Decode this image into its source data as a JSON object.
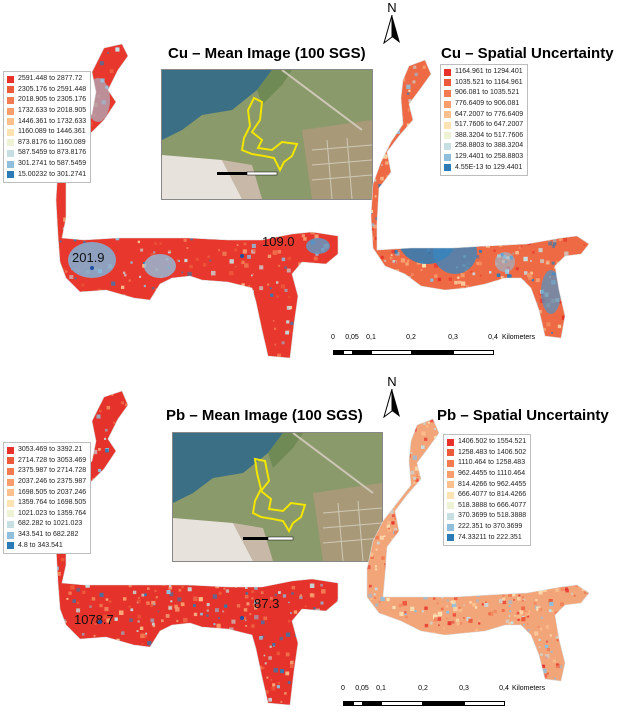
{
  "panels": {
    "cu_mean": {
      "title": "Cu – Mean Image (100 SGS)",
      "markers": [
        "201.9",
        "109.0"
      ],
      "legend": [
        {
          "label": "2591.448 to 2877.72",
          "color": "#e8312a"
        },
        {
          "label": "2305.176 to 2591.448",
          "color": "#ed5a3b"
        },
        {
          "label": "2018.905 to 2305.176",
          "color": "#f27b52"
        },
        {
          "label": "1732.633 to 2018.905",
          "color": "#f79e6c"
        },
        {
          "label": "1446.361 to 1732.633",
          "color": "#fbc08d"
        },
        {
          "label": "1160.089 to 1446.361",
          "color": "#fde3b4"
        },
        {
          "label": "873.8176 to 1160.089",
          "color": "#eef2d5"
        },
        {
          "label": "587.5459 to 873.8176",
          "color": "#c6dfe2"
        },
        {
          "label": "301.2741 to 587.5459",
          "color": "#8fbfdd"
        },
        {
          "label": "15.00232 to 301.2741",
          "color": "#2c7bb6"
        }
      ]
    },
    "cu_unc": {
      "title": "Cu – Spatial Uncertainty",
      "legend": [
        {
          "label": "1164.961 to 1294.401",
          "color": "#e8312a"
        },
        {
          "label": "1035.521 to 1164.961",
          "color": "#ed5a3b"
        },
        {
          "label": "906.081 to 1035.521",
          "color": "#f27b52"
        },
        {
          "label": "776.6409 to 906.081",
          "color": "#f79e6c"
        },
        {
          "label": "647.2007 to 776.6409",
          "color": "#fbc08d"
        },
        {
          "label": "517.7606 to 647.2007",
          "color": "#fde3b4"
        },
        {
          "label": "388.3204 to 517.7606",
          "color": "#eef2d5"
        },
        {
          "label": "258.8803 to 388.3204",
          "color": "#c6dfe2"
        },
        {
          "label": "129.4401 to 258.8803",
          "color": "#8fbfdd"
        },
        {
          "label": "4.55E-13 to 129.4401",
          "color": "#2c7bb6"
        }
      ]
    },
    "pb_mean": {
      "title": "Pb – Mean Image (100 SGS)",
      "markers": [
        "1078.7",
        "87.3"
      ],
      "legend": [
        {
          "label": "3053.469 to 3392.21",
          "color": "#e8312a"
        },
        {
          "label": "2714.728 to 3053.469",
          "color": "#ed5a3b"
        },
        {
          "label": "2375.987 to 2714.728",
          "color": "#f27b52"
        },
        {
          "label": "2037.246 to 2375.987",
          "color": "#f79e6c"
        },
        {
          "label": "1698.505 to 2037.246",
          "color": "#fbc08d"
        },
        {
          "label": "1359.764 to 1698.505",
          "color": "#fde3b4"
        },
        {
          "label": "1021.023 to 1359.764",
          "color": "#eef2d5"
        },
        {
          "label": "682.282 to 1021.023",
          "color": "#c6dfe2"
        },
        {
          "label": "343.541 to 682.282",
          "color": "#8fbfdd"
        },
        {
          "label": "4.8 to 343.541",
          "color": "#2c7bb6"
        }
      ]
    },
    "pb_unc": {
      "title": "Pb – Spatial Uncertainty",
      "legend": [
        {
          "label": "1406.502 to 1554.521",
          "color": "#e8312a"
        },
        {
          "label": "1258.483 to 1406.502",
          "color": "#ed5a3b"
        },
        {
          "label": "1110.464 to 1258.483",
          "color": "#f27b52"
        },
        {
          "label": "962.4455 to 1110.464",
          "color": "#f79e6c"
        },
        {
          "label": "814.4266 to 962.4455",
          "color": "#fbc08d"
        },
        {
          "label": "666.4077 to 814.4266",
          "color": "#fde3b4"
        },
        {
          "label": "518.3888 to 666.4077",
          "color": "#eef2d5"
        },
        {
          "label": "370.3699 to 518.3888",
          "color": "#c6dfe2"
        },
        {
          "label": "222.351 to 370.3699",
          "color": "#8fbfdd"
        },
        {
          "label": "74.33211 to 222.351",
          "color": "#2c7bb6"
        }
      ]
    }
  },
  "north_arrow": {
    "label": "N",
    "icon": "north-arrow-icon"
  },
  "scalebar": {
    "ticks": [
      "0",
      "0,05",
      "0,1",
      "0,2",
      "0,3",
      "0,4"
    ],
    "unit": "Kilometers"
  }
}
